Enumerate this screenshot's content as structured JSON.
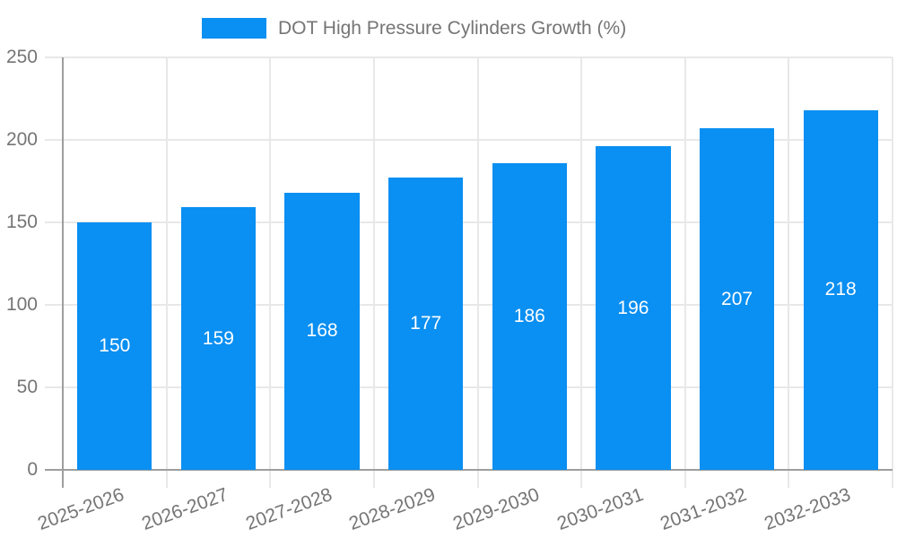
{
  "chart_data": {
    "type": "bar",
    "title": "DOT High Pressure Cylinders Growth (%)",
    "categories": [
      "2025-2026",
      "2026-2027",
      "2027-2028",
      "2028-2029",
      "2029-2030",
      "2030-2031",
      "2031-2032",
      "2032-2033"
    ],
    "series": [
      {
        "name": "DOT High Pressure Cylinders Growth (%)",
        "values": [
          150,
          159,
          168,
          177,
          186,
          196,
          207,
          218
        ]
      }
    ],
    "xlabel": "",
    "ylabel": "",
    "ylim": [
      0,
      250
    ],
    "yticks": [
      0,
      50,
      100,
      150,
      200,
      250
    ],
    "grid": true,
    "legend_position": "top-center",
    "bar_value_labels": "inside-middle-white",
    "colors": {
      "bar": "#0a8ff2",
      "axis": "#9e9e9e",
      "gridline": "#e8e8e8",
      "tick_label": "#757575",
      "bar_label": "#ffffff",
      "background": "#ffffff"
    }
  }
}
